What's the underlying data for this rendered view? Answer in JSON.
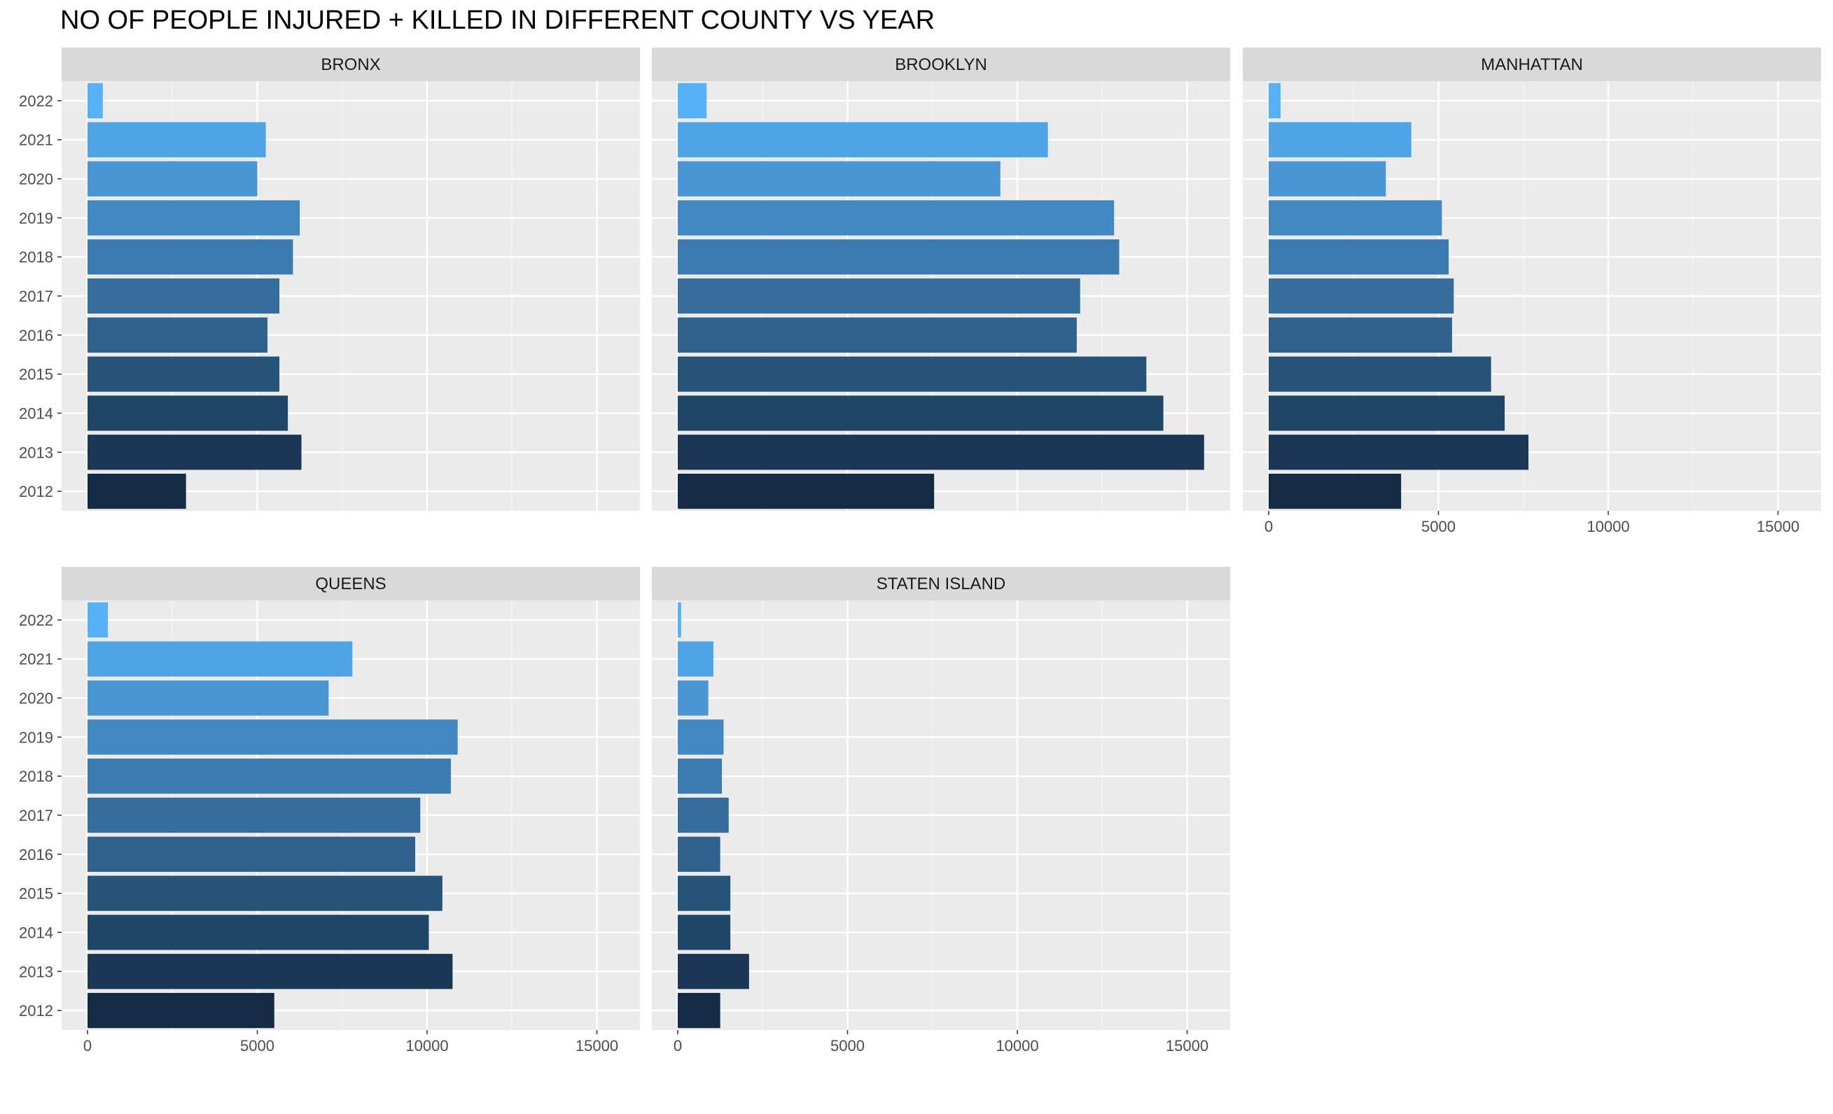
{
  "chart_data": {
    "type": "bar",
    "orientation": "horizontal",
    "title": "NO OF PEOPLE INJURED + KILLED IN DIFFERENT COUNTY VS YEAR",
    "xlabel": "",
    "ylabel": "",
    "xlim": [
      0,
      16000
    ],
    "x_ticks": [
      "0",
      "5000",
      "10000",
      "15000"
    ],
    "categories": [
      "2012",
      "2013",
      "2014",
      "2015",
      "2016",
      "2017",
      "2018",
      "2019",
      "2020",
      "2021",
      "2022"
    ],
    "grid": true,
    "legend": "none",
    "fill_gradient": {
      "low": "#132B43",
      "high": "#56B1F7"
    },
    "panels": [
      {
        "name": "BRONX",
        "values": [
          2900,
          6300,
          5900,
          5650,
          5300,
          5650,
          6050,
          6250,
          5000,
          5250,
          450
        ]
      },
      {
        "name": "BROOKLYN",
        "values": [
          7550,
          15500,
          14300,
          13800,
          11750,
          11850,
          13000,
          12850,
          9500,
          10900,
          850
        ]
      },
      {
        "name": "MANHATTAN",
        "values": [
          3900,
          7650,
          6950,
          6550,
          5400,
          5450,
          5300,
          5100,
          3450,
          4200,
          350
        ]
      },
      {
        "name": "QUEENS",
        "values": [
          5500,
          10750,
          10050,
          10450,
          9650,
          9800,
          10700,
          10900,
          7100,
          7800,
          600
        ]
      },
      {
        "name": "STATEN ISLAND",
        "values": [
          1250,
          2100,
          1550,
          1550,
          1250,
          1500,
          1300,
          1350,
          900,
          1050,
          100
        ]
      }
    ]
  }
}
